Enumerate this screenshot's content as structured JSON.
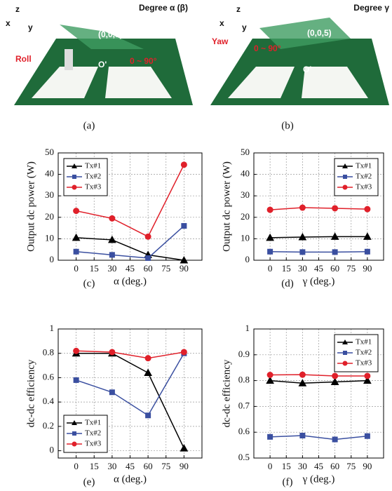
{
  "photos": [
    {
      "title": "Degree α (β)",
      "motion": "Roll",
      "point": "(0,0,5)",
      "range": "0 ~ 90°",
      "origin": "O'",
      "axis_z": "z",
      "axis_x": "x",
      "axis_y": "y",
      "caption": "(a)"
    },
    {
      "title": "Degree γ",
      "motion": "Yaw",
      "point": "(0,0,5)",
      "range": "0 ~ 90°",
      "origin": "O'",
      "axis_z": "z",
      "axis_x": "x",
      "axis_y": "y",
      "caption": "(b)"
    }
  ],
  "chart_data": [
    {
      "type": "line",
      "caption": "(c)",
      "xlabel": "α (deg.)",
      "ylabel": "Output dc power (W)",
      "x": [
        0,
        30,
        60,
        90
      ],
      "xlim": [
        -15,
        105
      ],
      "xticks": [
        0,
        15,
        30,
        45,
        60,
        75,
        90
      ],
      "ylim": [
        0,
        50
      ],
      "yticks": [
        0,
        10,
        20,
        30,
        40,
        50
      ],
      "grid": true,
      "legend": "upper left",
      "series": [
        {
          "name": "Tx#1",
          "color": "#000000",
          "marker": "triangle",
          "values": [
            10.5,
            9.5,
            2.5,
            0
          ]
        },
        {
          "name": "Tx#2",
          "color": "#3a4fa0",
          "marker": "square",
          "values": [
            4,
            2.5,
            1,
            16
          ]
        },
        {
          "name": "Tx#3",
          "color": "#e0202a",
          "marker": "circle",
          "values": [
            23,
            19.5,
            11,
            44.5
          ]
        }
      ]
    },
    {
      "type": "line",
      "caption": "(d)",
      "xlabel": "γ (deg.)",
      "ylabel": "Output dc power (W)",
      "x": [
        0,
        30,
        60,
        90
      ],
      "xlim": [
        -15,
        105
      ],
      "xticks": [
        0,
        15,
        30,
        45,
        60,
        75,
        90
      ],
      "ylim": [
        0,
        50
      ],
      "yticks": [
        0,
        10,
        20,
        30,
        40,
        50
      ],
      "grid": true,
      "legend": "upper right",
      "series": [
        {
          "name": "Tx#1",
          "color": "#000000",
          "marker": "triangle",
          "values": [
            10.5,
            10.8,
            11,
            11
          ]
        },
        {
          "name": "Tx#2",
          "color": "#3a4fa0",
          "marker": "square",
          "values": [
            4,
            3.8,
            3.8,
            4
          ]
        },
        {
          "name": "Tx#3",
          "color": "#e0202a",
          "marker": "circle",
          "values": [
            23.5,
            24.5,
            24.2,
            23.8
          ]
        }
      ]
    },
    {
      "type": "line",
      "caption": "(e)",
      "xlabel": "α (deg.)",
      "ylabel": "dc-dc efficiency",
      "x": [
        0,
        30,
        60,
        90
      ],
      "xlim": [
        -15,
        105
      ],
      "xticks": [
        0,
        15,
        30,
        45,
        60,
        75,
        90
      ],
      "ylim": [
        -0.06,
        1
      ],
      "yticks": [
        0,
        0.2,
        0.4,
        0.6,
        0.8,
        1
      ],
      "grid": true,
      "legend": "lower left",
      "series": [
        {
          "name": "Tx#1",
          "color": "#000000",
          "marker": "triangle",
          "values": [
            0.8,
            0.8,
            0.64,
            0.02
          ]
        },
        {
          "name": "Tx#2",
          "color": "#3a4fa0",
          "marker": "square",
          "values": [
            0.58,
            0.48,
            0.29,
            0.8
          ]
        },
        {
          "name": "Tx#3",
          "color": "#e0202a",
          "marker": "circle",
          "values": [
            0.82,
            0.81,
            0.76,
            0.81
          ]
        }
      ]
    },
    {
      "type": "line",
      "caption": "(f)",
      "xlabel": "γ (deg.)",
      "ylabel": "dc-dc efficiency",
      "x": [
        0,
        30,
        60,
        90
      ],
      "xlim": [
        -15,
        105
      ],
      "xticks": [
        0,
        15,
        30,
        45,
        60,
        75,
        90
      ],
      "ylim": [
        0.5,
        1
      ],
      "yticks": [
        0.5,
        0.6,
        0.7,
        0.8,
        0.9,
        1
      ],
      "grid": true,
      "legend": "upper right",
      "series": [
        {
          "name": "Tx#1",
          "color": "#000000",
          "marker": "triangle",
          "values": [
            0.8,
            0.79,
            0.795,
            0.8
          ]
        },
        {
          "name": "Tx#2",
          "color": "#3a4fa0",
          "marker": "square",
          "values": [
            0.582,
            0.587,
            0.572,
            0.585
          ]
        },
        {
          "name": "Tx#3",
          "color": "#e0202a",
          "marker": "circle",
          "values": [
            0.822,
            0.823,
            0.818,
            0.818
          ]
        }
      ]
    }
  ]
}
